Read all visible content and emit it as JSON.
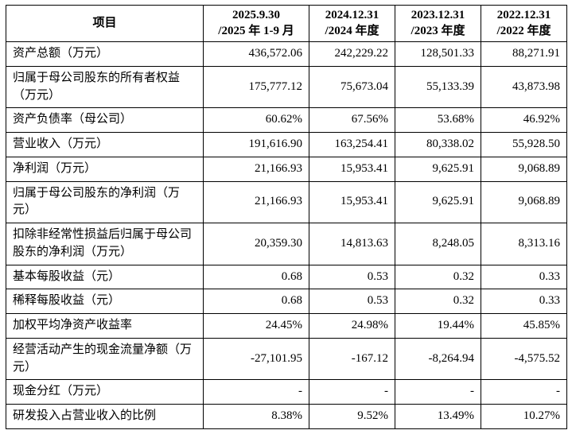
{
  "table": {
    "item_header": "项目",
    "columns": [
      {
        "date": "2025.9.30",
        "period": "/2025 年 1-9 月"
      },
      {
        "date": "2024.12.31",
        "period": "/2024 年度"
      },
      {
        "date": "2023.12.31",
        "period": "/2023 年度"
      },
      {
        "date": "2022.12.31",
        "period": "/2022 年度"
      }
    ],
    "rows": [
      {
        "label": "资产总额（万元）",
        "values": [
          "436,572.06",
          "242,229.22",
          "128,501.33",
          "88,271.91"
        ]
      },
      {
        "label": "归属于母公司股东的所有者权益（万元）",
        "values": [
          "175,777.12",
          "75,673.04",
          "55,133.39",
          "43,873.98"
        ]
      },
      {
        "label": "资产负债率（母公司）",
        "values": [
          "60.62%",
          "67.56%",
          "53.68%",
          "46.92%"
        ]
      },
      {
        "label": "营业收入（万元）",
        "values": [
          "191,616.90",
          "163,254.41",
          "80,338.02",
          "55,928.50"
        ]
      },
      {
        "label": "净利润（万元）",
        "values": [
          "21,166.93",
          "15,953.41",
          "9,625.91",
          "9,068.89"
        ]
      },
      {
        "label": "归属于母公司股东的净利润（万元）",
        "values": [
          "21,166.93",
          "15,953.41",
          "9,625.91",
          "9,068.89"
        ]
      },
      {
        "label": "扣除非经常性损益后归属于母公司股东的净利润（万元）",
        "values": [
          "20,359.30",
          "14,813.63",
          "8,248.05",
          "8,313.16"
        ]
      },
      {
        "label": "基本每股收益（元）",
        "values": [
          "0.68",
          "0.53",
          "0.32",
          "0.33"
        ]
      },
      {
        "label": "稀释每股收益（元）",
        "values": [
          "0.68",
          "0.53",
          "0.32",
          "0.33"
        ]
      },
      {
        "label": "加权平均净资产收益率",
        "values": [
          "24.45%",
          "24.98%",
          "19.44%",
          "45.85%"
        ]
      },
      {
        "label": "经营活动产生的现金流量净额（万元）",
        "values": [
          "-27,101.95",
          "-167.12",
          "-8,264.94",
          "-4,575.52"
        ]
      },
      {
        "label": "现金分红（万元）",
        "values": [
          "-",
          "-",
          "-",
          "-"
        ]
      },
      {
        "label": "研发投入占营业收入的比例",
        "values": [
          "8.38%",
          "9.52%",
          "13.49%",
          "10.27%"
        ]
      }
    ]
  }
}
